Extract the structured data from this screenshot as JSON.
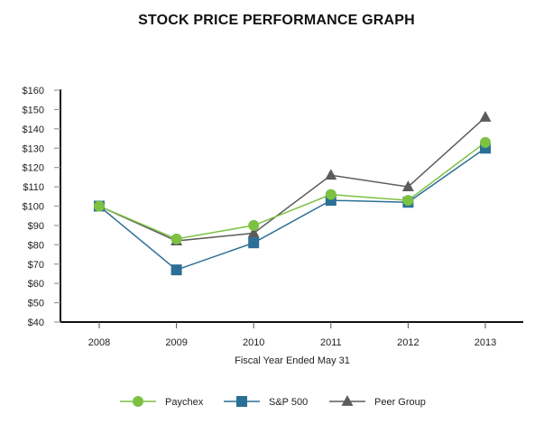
{
  "chart_data": {
    "type": "line",
    "title": "STOCK PRICE PERFORMANCE GRAPH",
    "xlabel": "Fiscal Year Ended May 31",
    "ylabel": "",
    "categories": [
      "2008",
      "2009",
      "2010",
      "2011",
      "2012",
      "2013"
    ],
    "ylim": [
      40,
      160
    ],
    "yticks": [
      40,
      50,
      60,
      70,
      80,
      90,
      100,
      110,
      120,
      130,
      140,
      150,
      160
    ],
    "ytick_labels": [
      "$40",
      "$50",
      "$60",
      "$70",
      "$80",
      "$90",
      "$100",
      "$110",
      "$120",
      "$130",
      "$140",
      "$150",
      "$160"
    ],
    "grid": false,
    "legend_position": "bottom",
    "series": [
      {
        "name": "Paychex",
        "marker": "circle",
        "color": "#7dc142",
        "values": [
          100,
          83,
          90,
          106,
          103,
          133
        ]
      },
      {
        "name": "S&P 500",
        "marker": "square",
        "color": "#2b6f96",
        "values": [
          100,
          67,
          81,
          103,
          102,
          130
        ]
      },
      {
        "name": "Peer Group",
        "marker": "triangle",
        "color": "#5c5c5c",
        "values": [
          100,
          82,
          86,
          116,
          110,
          146
        ]
      }
    ]
  }
}
